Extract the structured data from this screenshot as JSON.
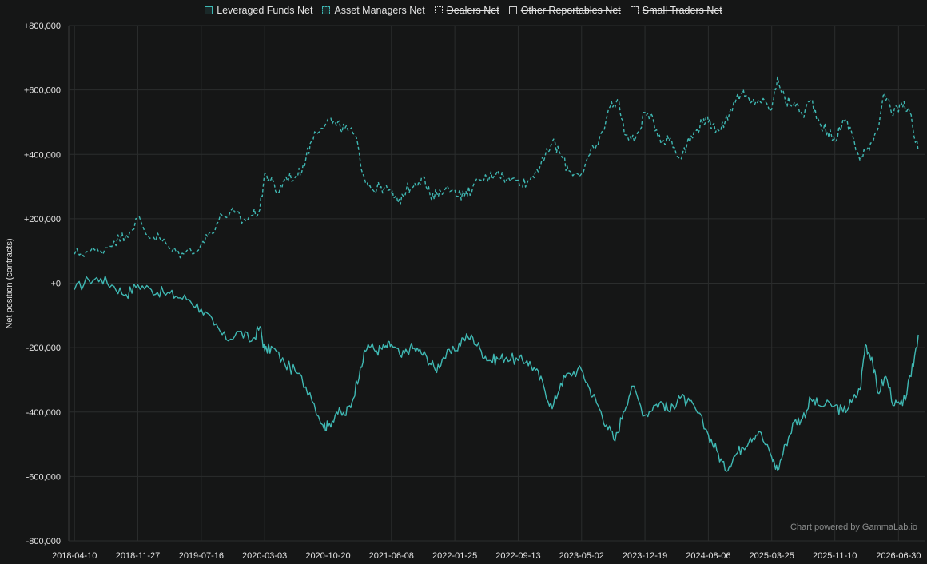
{
  "chart_data": {
    "type": "line",
    "ylabel": "Net position (contracts)",
    "ylim": [
      -800000,
      800000
    ],
    "yticks": [
      -800000,
      -600000,
      -400000,
      -200000,
      0,
      200000,
      400000,
      600000,
      800000
    ],
    "ytick_labels": [
      "-800,000",
      "-600,000",
      "-400,000",
      "-200,000",
      "+0",
      "+200,000",
      "+400,000",
      "+600,000",
      "+800,000"
    ],
    "xlim": [
      "2018-03-20",
      "2026-10-06"
    ],
    "xticks": [
      "2018-04-10",
      "2018-11-27",
      "2019-07-16",
      "2020-03-03",
      "2020-10-20",
      "2021-06-08",
      "2022-01-25",
      "2022-09-13",
      "2023-05-02",
      "2023-12-19",
      "2024-08-06",
      "2025-03-25",
      "2025-11-10",
      "2026-06-30"
    ],
    "grid": true,
    "legend_position": "top-center",
    "watermark": "Chart powered by GammaLab.io",
    "colors": {
      "background": "#151616",
      "series": "#3fb8b3",
      "grid": "#2b2d2d",
      "text": "#e4e4e4",
      "muted": "#cfcfcf"
    },
    "series": [
      {
        "name": "Leveraged Funds Net",
        "visible": true,
        "dash": "solid",
        "points": [
          [
            "2018-04-10",
            -20000
          ],
          [
            "2018-06-01",
            10000
          ],
          [
            "2018-07-15",
            15000
          ],
          [
            "2018-09-01",
            -10000
          ],
          [
            "2018-10-15",
            -35000
          ],
          [
            "2018-11-27",
            -5000
          ],
          [
            "2019-01-15",
            -20000
          ],
          [
            "2019-03-01",
            -30000
          ],
          [
            "2019-04-15",
            -40000
          ],
          [
            "2019-06-01",
            -50000
          ],
          [
            "2019-07-16",
            -80000
          ],
          [
            "2019-09-01",
            -130000
          ],
          [
            "2019-10-15",
            -175000
          ],
          [
            "2019-12-01",
            -150000
          ],
          [
            "2020-01-15",
            -180000
          ],
          [
            "2020-02-15",
            -135000
          ],
          [
            "2020-03-03",
            -210000
          ],
          [
            "2020-04-01",
            -200000
          ],
          [
            "2020-05-15",
            -250000
          ],
          [
            "2020-07-01",
            -280000
          ],
          [
            "2020-08-15",
            -340000
          ],
          [
            "2020-10-01",
            -440000
          ],
          [
            "2020-10-20",
            -445000
          ],
          [
            "2020-11-20",
            -400000
          ],
          [
            "2020-12-20",
            -410000
          ],
          [
            "2021-01-15",
            -370000
          ],
          [
            "2021-02-15",
            -260000
          ],
          [
            "2021-03-15",
            -190000
          ],
          [
            "2021-04-15",
            -210000
          ],
          [
            "2021-05-15",
            -200000
          ],
          [
            "2021-06-08",
            -190000
          ],
          [
            "2021-07-15",
            -230000
          ],
          [
            "2021-08-15",
            -200000
          ],
          [
            "2021-09-15",
            -210000
          ],
          [
            "2021-10-15",
            -230000
          ],
          [
            "2021-11-15",
            -270000
          ],
          [
            "2021-12-15",
            -230000
          ],
          [
            "2022-01-25",
            -210000
          ],
          [
            "2022-02-25",
            -170000
          ],
          [
            "2022-04-01",
            -170000
          ],
          [
            "2022-05-01",
            -210000
          ],
          [
            "2022-06-01",
            -240000
          ],
          [
            "2022-07-01",
            -235000
          ],
          [
            "2022-08-01",
            -230000
          ],
          [
            "2022-09-13",
            -240000
          ],
          [
            "2022-10-15",
            -240000
          ],
          [
            "2022-11-15",
            -270000
          ],
          [
            "2022-12-15",
            -320000
          ],
          [
            "2023-01-15",
            -390000
          ],
          [
            "2023-02-15",
            -310000
          ],
          [
            "2023-03-20",
            -280000
          ],
          [
            "2023-05-02",
            -270000
          ],
          [
            "2023-06-01",
            -330000
          ],
          [
            "2023-07-01",
            -380000
          ],
          [
            "2023-08-01",
            -440000
          ],
          [
            "2023-09-01",
            -490000
          ],
          [
            "2023-10-01",
            -400000
          ],
          [
            "2023-11-01",
            -320000
          ],
          [
            "2023-12-19",
            -410000
          ],
          [
            "2024-01-20",
            -380000
          ],
          [
            "2024-02-20",
            -370000
          ],
          [
            "2024-03-20",
            -400000
          ],
          [
            "2024-04-20",
            -350000
          ],
          [
            "2024-05-20",
            -370000
          ],
          [
            "2024-06-20",
            -390000
          ],
          [
            "2024-08-06",
            -470000
          ],
          [
            "2024-09-06",
            -520000
          ],
          [
            "2024-10-06",
            -580000
          ],
          [
            "2024-11-06",
            -540000
          ],
          [
            "2024-12-06",
            -510000
          ],
          [
            "2025-01-06",
            -480000
          ],
          [
            "2025-02-06",
            -460000
          ],
          [
            "2025-03-25",
            -540000
          ],
          [
            "2025-04-15",
            -580000
          ],
          [
            "2025-05-15",
            -500000
          ],
          [
            "2025-06-15",
            -430000
          ],
          [
            "2025-07-15",
            -420000
          ],
          [
            "2025-08-15",
            -360000
          ],
          [
            "2025-09-15",
            -380000
          ],
          [
            "2025-11-10",
            -380000
          ],
          [
            "2025-12-10",
            -400000
          ],
          [
            "2026-01-10",
            -370000
          ],
          [
            "2026-02-10",
            -330000
          ],
          [
            "2026-03-01",
            -190000
          ],
          [
            "2026-03-25",
            -230000
          ],
          [
            "2026-04-15",
            -340000
          ],
          [
            "2026-05-15",
            -290000
          ],
          [
            "2026-06-15",
            -380000
          ],
          [
            "2026-07-15",
            -380000
          ],
          [
            "2026-08-15",
            -290000
          ],
          [
            "2026-09-10",
            -160000
          ]
        ]
      },
      {
        "name": "Asset Managers Net",
        "visible": true,
        "dash": "dashed",
        "points": [
          [
            "2018-04-10",
            90000
          ],
          [
            "2018-06-01",
            100000
          ],
          [
            "2018-07-15",
            100000
          ],
          [
            "2018-09-01",
            130000
          ],
          [
            "2018-10-15",
            150000
          ],
          [
            "2018-11-27",
            200000
          ],
          [
            "2019-01-01",
            150000
          ],
          [
            "2019-02-15",
            140000
          ],
          [
            "2019-04-01",
            100000
          ],
          [
            "2019-05-15",
            90000
          ],
          [
            "2019-07-16",
            120000
          ],
          [
            "2019-08-20",
            160000
          ],
          [
            "2019-10-01",
            210000
          ],
          [
            "2019-11-15",
            220000
          ],
          [
            "2019-12-15",
            190000
          ],
          [
            "2020-01-15",
            210000
          ],
          [
            "2020-02-15",
            230000
          ],
          [
            "2020-03-03",
            340000
          ],
          [
            "2020-03-25",
            320000
          ],
          [
            "2020-04-20",
            280000
          ],
          [
            "2020-05-20",
            330000
          ],
          [
            "2020-07-01",
            330000
          ],
          [
            "2020-08-01",
            390000
          ],
          [
            "2020-09-01",
            470000
          ],
          [
            "2020-10-20",
            510000
          ],
          [
            "2020-11-20",
            490000
          ],
          [
            "2020-12-20",
            480000
          ],
          [
            "2021-01-25",
            460000
          ],
          [
            "2021-03-01",
            330000
          ],
          [
            "2021-04-01",
            290000
          ],
          [
            "2021-05-01",
            300000
          ],
          [
            "2021-06-08",
            280000
          ],
          [
            "2021-07-01",
            250000
          ],
          [
            "2021-08-01",
            290000
          ],
          [
            "2021-09-01",
            310000
          ],
          [
            "2021-10-01",
            330000
          ],
          [
            "2021-11-01",
            260000
          ],
          [
            "2021-12-01",
            290000
          ],
          [
            "2022-01-25",
            290000
          ],
          [
            "2022-03-01",
            270000
          ],
          [
            "2022-04-01",
            300000
          ],
          [
            "2022-05-01",
            320000
          ],
          [
            "2022-06-01",
            330000
          ],
          [
            "2022-07-01",
            350000
          ],
          [
            "2022-08-01",
            320000
          ],
          [
            "2022-09-13",
            320000
          ],
          [
            "2022-10-15",
            310000
          ],
          [
            "2022-11-15",
            350000
          ],
          [
            "2022-12-15",
            380000
          ],
          [
            "2023-01-15",
            440000
          ],
          [
            "2023-02-15",
            400000
          ],
          [
            "2023-03-15",
            350000
          ],
          [
            "2023-05-02",
            340000
          ],
          [
            "2023-06-01",
            400000
          ],
          [
            "2023-07-01",
            430000
          ],
          [
            "2023-08-15",
            550000
          ],
          [
            "2023-09-10",
            570000
          ],
          [
            "2023-10-10",
            460000
          ],
          [
            "2023-11-10",
            440000
          ],
          [
            "2023-12-19",
            530000
          ],
          [
            "2024-01-20",
            500000
          ],
          [
            "2024-02-20",
            440000
          ],
          [
            "2024-03-20",
            450000
          ],
          [
            "2024-04-20",
            390000
          ],
          [
            "2024-05-20",
            430000
          ],
          [
            "2024-06-20",
            470000
          ],
          [
            "2024-07-20",
            510000
          ],
          [
            "2024-08-06",
            500000
          ],
          [
            "2024-09-06",
            480000
          ],
          [
            "2024-10-06",
            500000
          ],
          [
            "2024-11-06",
            560000
          ],
          [
            "2024-12-06",
            590000
          ],
          [
            "2025-01-06",
            560000
          ],
          [
            "2025-02-06",
            570000
          ],
          [
            "2025-03-25",
            540000
          ],
          [
            "2025-04-15",
            640000
          ],
          [
            "2025-05-15",
            560000
          ],
          [
            "2025-06-15",
            560000
          ],
          [
            "2025-07-15",
            520000
          ],
          [
            "2025-08-15",
            570000
          ],
          [
            "2025-09-15",
            500000
          ],
          [
            "2025-10-15",
            470000
          ],
          [
            "2025-11-10",
            440000
          ],
          [
            "2025-12-10",
            510000
          ],
          [
            "2026-01-10",
            470000
          ],
          [
            "2026-02-10",
            380000
          ],
          [
            "2026-03-10",
            420000
          ],
          [
            "2026-04-10",
            470000
          ],
          [
            "2026-05-10",
            590000
          ],
          [
            "2026-06-10",
            520000
          ],
          [
            "2026-07-10",
            560000
          ],
          [
            "2026-08-10",
            530000
          ],
          [
            "2026-09-10",
            410000
          ]
        ]
      },
      {
        "name": "Dealers Net",
        "visible": false,
        "dash": "dotted",
        "points": []
      },
      {
        "name": "Other Reportables Net",
        "visible": false,
        "dash": "solid",
        "points": []
      },
      {
        "name": "Small Traders Net",
        "visible": false,
        "dash": "dashed",
        "points": []
      }
    ]
  }
}
